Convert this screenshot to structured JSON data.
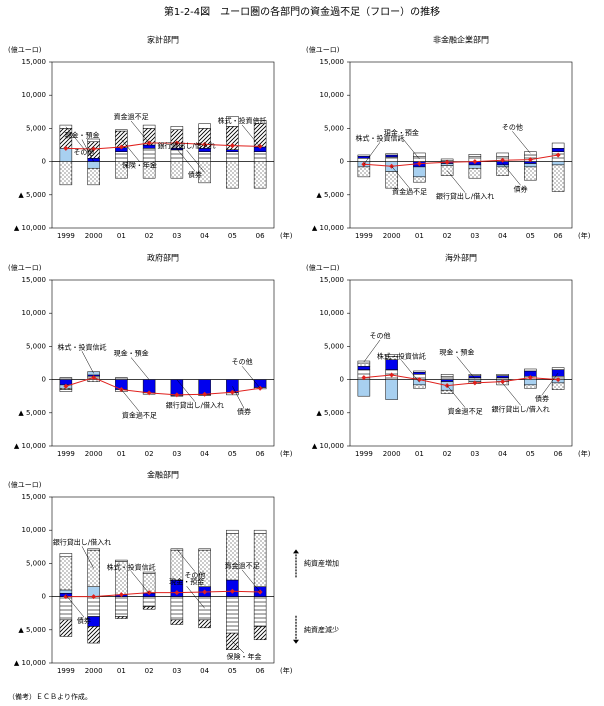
{
  "title": "第1-2-4図　ユーロ圏の各部門の資金過不足（フロー）の推移",
  "note": "（備考）ＥＣＢより作成。",
  "chart_data": [
    {
      "type": "stacked_bar",
      "title": "家計部門",
      "y_unit": "(億ユーロ)",
      "x_unit": "(年)",
      "categories": [
        "1999",
        "2000",
        "01",
        "02",
        "03",
        "04",
        "05",
        "06"
      ],
      "ylim": [
        -10000,
        15000
      ],
      "yticks": [
        {
          "value": 15000,
          "label": "15,000"
        },
        {
          "value": 10000,
          "label": "10,000"
        },
        {
          "value": 5000,
          "label": "5,000"
        },
        0,
        {
          "value": -5000,
          "label": "▲ 5,000"
        },
        {
          "value": -10000,
          "label": "▲ 10,000"
        }
      ],
      "series": [
        {
          "name": "現金・預金",
          "pattern": "hlines",
          "color": "#000000",
          "values": [
            0,
            0,
            1500,
            2000,
            1800,
            1500,
            1500,
            1500
          ]
        },
        {
          "name": "債券",
          "pattern": "solid",
          "color": "#0000ee",
          "values": [
            0,
            500,
            600,
            500,
            200,
            500,
            300,
            700
          ]
        },
        {
          "name": "株式・投資信託",
          "pattern": "solid",
          "color": "#a8d0f0",
          "values": [
            2000,
            -1000,
            0,
            0,
            0,
            0,
            0,
            0
          ]
        },
        {
          "name": "保険・年金",
          "pattern": "hatch",
          "color": "#000000",
          "values": [
            3000,
            2500,
            2500,
            2500,
            2800,
            3000,
            3500,
            3500
          ]
        },
        {
          "name": "銀行貸出し/借入れ",
          "pattern": "dots",
          "color": "#000000",
          "values": [
            -3500,
            -2500,
            -2500,
            -2500,
            -2500,
            -3200,
            -4000,
            -4000
          ]
        },
        {
          "name": "その他",
          "pattern": "solid",
          "color": "#ffffff",
          "values": [
            500,
            400,
            200,
            500,
            500,
            700,
            1500,
            500
          ]
        },
        {
          "name": "資金過不足",
          "type": "line",
          "color": "#e0201c",
          "values": [
            2000,
            1900,
            2200,
            2800,
            2800,
            2600,
            2400,
            2300
          ]
        }
      ]
    },
    {
      "type": "stacked_bar",
      "title": "非金融企業部門",
      "y_unit": "(億ユーロ)",
      "x_unit": "(年)",
      "categories": [
        "1999",
        "2000",
        "01",
        "02",
        "03",
        "04",
        "05",
        "06"
      ],
      "ylim": [
        -10000,
        15000
      ],
      "yticks": [
        {
          "value": 15000,
          "label": "15,000"
        },
        {
          "value": 10000,
          "label": "10,000"
        },
        {
          "value": 5000,
          "label": "5,000"
        },
        0,
        {
          "value": -5000,
          "label": "▲ 5,000"
        },
        {
          "value": -10000,
          "label": "▲ 10,000"
        }
      ],
      "series": [
        {
          "name": "現金・預金",
          "pattern": "hlines",
          "color": "#000000",
          "values": [
            500,
            700,
            800,
            200,
            800,
            800,
            1000,
            1500
          ]
        },
        {
          "name": "債券",
          "pattern": "solid",
          "color": "#0000ee",
          "values": [
            300,
            300,
            -800,
            -300,
            -500,
            -500,
            -300,
            500
          ]
        },
        {
          "name": "株式・投資信託",
          "pattern": "solid",
          "color": "#a8d0f0",
          "values": [
            -800,
            -1500,
            -1500,
            -300,
            -500,
            -300,
            -500,
            -500
          ]
        },
        {
          "name": "銀行貸出し/借入れ",
          "pattern": "dots",
          "color": "#000000",
          "values": [
            -1500,
            -2500,
            -800,
            -1500,
            -1500,
            -1300,
            -2000,
            -4000
          ]
        },
        {
          "name": "その他",
          "pattern": "solid",
          "color": "#ffffff",
          "values": [
            200,
            200,
            500,
            200,
            300,
            500,
            500,
            800
          ]
        },
        {
          "name": "資金過不足",
          "type": "line",
          "color": "#e0201c",
          "values": [
            -400,
            -700,
            -300,
            -100,
            0,
            200,
            300,
            1000
          ]
        }
      ]
    },
    {
      "type": "stacked_bar",
      "title": "政府部門",
      "y_unit": "(億ユーロ)",
      "x_unit": "(年)",
      "categories": [
        "1999",
        "2000",
        "01",
        "02",
        "03",
        "04",
        "05",
        "06"
      ],
      "ylim": [
        -10000,
        15000
      ],
      "yticks": [
        {
          "value": 15000,
          "label": "15,000"
        },
        {
          "value": 10000,
          "label": "10,000"
        },
        {
          "value": 5000,
          "label": "5,000"
        },
        0,
        {
          "value": -5000,
          "label": "▲ 5,000"
        },
        {
          "value": -10000,
          "label": "▲ 10,000"
        }
      ],
      "series": [
        {
          "name": "現金・預金",
          "pattern": "hlines",
          "color": "#000000",
          "values": [
            300,
            500,
            300,
            0,
            0,
            0,
            0,
            0
          ]
        },
        {
          "name": "債券",
          "pattern": "solid",
          "color": "#0000ee",
          "values": [
            -800,
            200,
            -1500,
            -2000,
            -2400,
            -2300,
            -2000,
            -1200
          ]
        },
        {
          "name": "株式・投資信託",
          "pattern": "solid",
          "color": "#a8d0f0",
          "values": [
            -500,
            500,
            0,
            0,
            0,
            0,
            0,
            0
          ]
        },
        {
          "name": "銀行貸出し/借入れ",
          "pattern": "dots",
          "color": "#000000",
          "values": [
            -200,
            -300,
            0,
            0,
            0,
            0,
            0,
            0
          ]
        },
        {
          "name": "その他",
          "pattern": "solid",
          "color": "#ffffff",
          "values": [
            -300,
            0,
            -300,
            -200,
            -100,
            -100,
            -300,
            -200
          ]
        },
        {
          "name": "資金過不足",
          "type": "line",
          "color": "#e0201c",
          "values": [
            -1000,
            300,
            -1500,
            -2000,
            -2300,
            -2200,
            -1900,
            -1300
          ]
        }
      ]
    },
    {
      "type": "stacked_bar",
      "title": "海外部門",
      "y_unit": "(億ユーロ)",
      "x_unit": "(年)",
      "categories": [
        "1999",
        "2000",
        "01",
        "02",
        "03",
        "04",
        "05",
        "06"
      ],
      "ylim": [
        -10000,
        15000
      ],
      "yticks": [
        {
          "value": 15000,
          "label": "15,000"
        },
        {
          "value": 10000,
          "label": "10,000"
        },
        {
          "value": 5000,
          "label": "5,000"
        },
        0,
        {
          "value": -5000,
          "label": "▲ 5,000"
        },
        {
          "value": -10000,
          "label": "▲ 10,000"
        }
      ],
      "series": [
        {
          "name": "現金・預金",
          "pattern": "hlines",
          "color": "#000000",
          "values": [
            1500,
            1500,
            800,
            500,
            300,
            300,
            500,
            500
          ]
        },
        {
          "name": "債券",
          "pattern": "solid",
          "color": "#0000ee",
          "values": [
            500,
            1500,
            300,
            -300,
            300,
            300,
            800,
            1000
          ]
        },
        {
          "name": "株式・投資信託",
          "pattern": "solid",
          "color": "#a8d0f0",
          "values": [
            -2500,
            -3000,
            -800,
            -1300,
            -300,
            -300,
            -800,
            -500
          ]
        },
        {
          "name": "銀行貸出し/借入れ",
          "pattern": "dots",
          "color": "#000000",
          "values": [
            500,
            500,
            -500,
            -500,
            -300,
            -500,
            -500,
            -1000
          ]
        },
        {
          "name": "その他",
          "pattern": "solid",
          "color": "#ffffff",
          "values": [
            300,
            300,
            200,
            300,
            200,
            200,
            300,
            300
          ]
        },
        {
          "name": "資金過不足",
          "type": "line",
          "color": "#e0201c",
          "values": [
            300,
            700,
            0,
            -900,
            -500,
            -300,
            300,
            0
          ]
        }
      ]
    },
    {
      "type": "stacked_bar",
      "title": "金融部門",
      "y_unit": "(億ユーロ)",
      "x_unit": "(年)",
      "categories": [
        "1999",
        "2000",
        "01",
        "02",
        "03",
        "04",
        "05",
        "06"
      ],
      "ylim": [
        -10000,
        15000
      ],
      "yticks": [
        {
          "value": 15000,
          "label": "15,000"
        },
        {
          "value": 10000,
          "label": "10,000"
        },
        {
          "value": 5000,
          "label": "5,000"
        },
        0,
        {
          "value": -5000,
          "label": "▲ 5,000"
        },
        {
          "value": -10000,
          "label": "▲ 10,000"
        }
      ],
      "annotations": [
        "純資産増加",
        "純資産減少"
      ],
      "series": [
        {
          "name": "現金・預金",
          "pattern": "hlines",
          "color": "#000000",
          "values": [
            -3500,
            -3000,
            -3000,
            -1500,
            -3500,
            -3500,
            -5500,
            -4500
          ]
        },
        {
          "name": "債券",
          "pattern": "solid",
          "color": "#0000ee",
          "values": [
            500,
            -1500,
            300,
            500,
            2500,
            1500,
            2500,
            1500
          ]
        },
        {
          "name": "株式・投資信託",
          "pattern": "solid",
          "color": "#a8d0f0",
          "values": [
            500,
            1500,
            0,
            0,
            0,
            0,
            0,
            0
          ]
        },
        {
          "name": "保険・年金",
          "pattern": "hatch",
          "color": "#000000",
          "values": [
            -2500,
            -2500,
            -300,
            -400,
            -700,
            -1200,
            -2500,
            -2000
          ]
        },
        {
          "name": "銀行貸出し/借入れ",
          "pattern": "dots",
          "color": "#000000",
          "values": [
            5000,
            5500,
            5000,
            3000,
            4500,
            5500,
            7000,
            8000
          ]
        },
        {
          "name": "その他",
          "pattern": "solid",
          "color": "#ffffff",
          "values": [
            500,
            200,
            200,
            200,
            200,
            200,
            500,
            500
          ]
        },
        {
          "name": "資金過不足",
          "type": "line",
          "color": "#e0201c",
          "values": [
            0,
            0,
            300,
            600,
            600,
            700,
            800,
            700
          ]
        }
      ]
    }
  ]
}
